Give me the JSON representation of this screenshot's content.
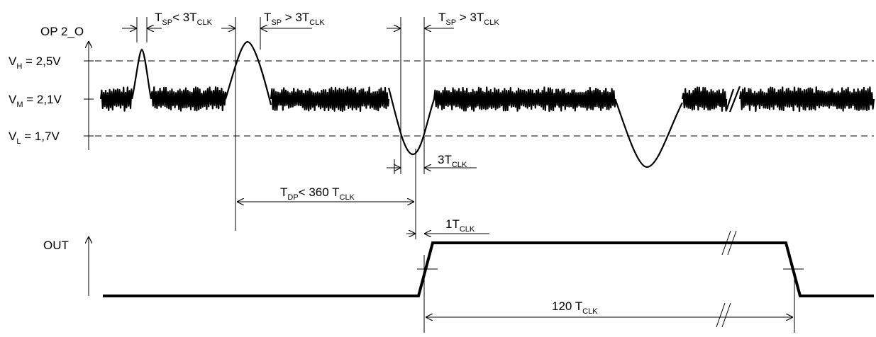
{
  "signals": {
    "op": "OP 2_O",
    "out": "OUT"
  },
  "levels": {
    "vh": {
      "sym": "V",
      "sub": "H",
      "value": " = 2,5V"
    },
    "vm": {
      "sym": "V",
      "sub": "M",
      "value": " = 2,1V"
    },
    "vl": {
      "sym": "V",
      "sub": "L",
      "value": " = 1,7V"
    }
  },
  "timing": {
    "tsp_short": {
      "sym": "T",
      "sub": "SP",
      "rest": "<  3T",
      "rest_sub": "CLK"
    },
    "tsp_long_1": {
      "sym": "T",
      "sub": "SP",
      "rest": " >  3T",
      "rest_sub": "CLK"
    },
    "tsp_long_2": {
      "sym": "T",
      "sub": "SP",
      "rest": " >  3T",
      "rest_sub": "CLK"
    },
    "three_tclk": {
      "sym": "3T",
      "sub": "CLK"
    },
    "tdp": {
      "sym": "T",
      "sub": "DP",
      "rest": "<  360 T",
      "rest_sub": "CLK"
    },
    "one_tclk": {
      "sym": "1T",
      "sub": "CLK"
    },
    "out_width": {
      "sym": "120 T",
      "sub": "CLK"
    }
  }
}
